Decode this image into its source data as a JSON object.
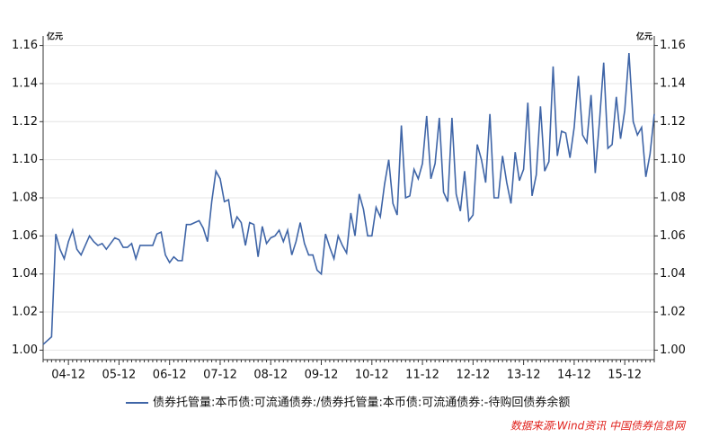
{
  "chart_data": {
    "type": "line",
    "y_unit_left": "亿元",
    "y_unit_right": "亿元",
    "source": "数据来源:Wind资讯 中国债券信息网",
    "categories": [
      null,
      null,
      null,
      null,
      null,
      null,
      "04-12",
      null,
      null,
      null,
      null,
      null,
      null,
      null,
      null,
      null,
      null,
      null,
      "05-12",
      null,
      null,
      null,
      null,
      null,
      null,
      null,
      null,
      null,
      null,
      null,
      "06-12",
      null,
      null,
      null,
      null,
      null,
      null,
      null,
      null,
      null,
      null,
      null,
      "07-12",
      null,
      null,
      null,
      null,
      null,
      null,
      null,
      null,
      null,
      null,
      null,
      "08-12",
      null,
      null,
      null,
      null,
      null,
      null,
      null,
      null,
      null,
      null,
      null,
      "09-12",
      null,
      null,
      null,
      null,
      null,
      null,
      null,
      null,
      null,
      null,
      null,
      "10-12",
      null,
      null,
      null,
      null,
      null,
      null,
      null,
      null,
      null,
      null,
      null,
      "11-12",
      null,
      null,
      null,
      null,
      null,
      null,
      null,
      null,
      null,
      null,
      null,
      "12-12",
      null,
      null,
      null,
      null,
      null,
      null,
      null,
      null,
      null,
      null,
      null,
      "13-12",
      null,
      null,
      null,
      null,
      null,
      null,
      null,
      null,
      null,
      null,
      null,
      "14-12",
      null,
      null,
      null,
      null,
      null,
      null,
      null,
      null,
      null,
      null,
      null,
      "15-12",
      null,
      null,
      null,
      null,
      null,
      null,
      null
    ],
    "series": [
      {
        "name": "债券托管量:本币债:可流通债券:/债券托管量:本币债:可流通债券:-待购回债券余额",
        "color": "#3f65a7",
        "values": [
          1.003,
          1.005,
          1.007,
          1.061,
          1.053,
          1.048,
          1.057,
          1.063,
          1.053,
          1.05,
          1.055,
          1.06,
          1.057,
          1.055,
          1.056,
          1.053,
          1.056,
          1.059,
          1.058,
          1.054,
          1.054,
          1.056,
          1.048,
          1.055,
          1.055,
          1.055,
          1.055,
          1.061,
          1.062,
          1.05,
          1.046,
          1.049,
          1.047,
          1.047,
          1.066,
          1.066,
          1.067,
          1.068,
          1.064,
          1.057,
          1.078,
          1.094,
          1.09,
          1.078,
          1.079,
          1.064,
          1.07,
          1.067,
          1.055,
          1.067,
          1.066,
          1.049,
          1.065,
          1.056,
          1.059,
          1.06,
          1.063,
          1.057,
          1.063,
          1.05,
          1.057,
          1.067,
          1.056,
          1.05,
          1.05,
          1.042,
          1.04,
          1.061,
          1.054,
          1.048,
          1.06,
          1.055,
          1.051,
          1.072,
          1.06,
          1.082,
          1.074,
          1.06,
          1.06,
          1.075,
          1.07,
          1.087,
          1.1,
          1.077,
          1.071,
          1.118,
          1.08,
          1.081,
          1.095,
          1.09,
          1.098,
          1.123,
          1.09,
          1.098,
          1.122,
          1.083,
          1.078,
          1.122,
          1.082,
          1.073,
          1.094,
          1.068,
          1.071,
          1.108,
          1.1,
          1.088,
          1.124,
          1.08,
          1.08,
          1.102,
          1.088,
          1.077,
          1.104,
          1.089,
          1.095,
          1.13,
          1.081,
          1.092,
          1.128,
          1.094,
          1.099,
          1.149,
          1.102,
          1.115,
          1.114,
          1.101,
          1.117,
          1.144,
          1.113,
          1.109,
          1.134,
          1.093,
          1.12,
          1.151,
          1.106,
          1.108,
          1.133,
          1.111,
          1.126,
          1.156,
          1.12,
          1.113,
          1.117,
          1.091,
          1.103,
          1.124
        ]
      }
    ],
    "ylim": [
      0.995,
      1.165
    ],
    "yticks": [
      {
        "value": 1.0,
        "label": "1.00"
      },
      {
        "value": 1.02,
        "label": "1.02"
      },
      {
        "value": 1.04,
        "label": "1.04"
      },
      {
        "value": 1.06,
        "label": "1.06"
      },
      {
        "value": 1.08,
        "label": "1.08"
      },
      {
        "value": 1.1,
        "label": "1.10"
      },
      {
        "value": 1.12,
        "label": "1.12"
      },
      {
        "value": 1.14,
        "label": "1.14"
      },
      {
        "value": 1.16,
        "label": "1.16"
      }
    ],
    "grid": true
  }
}
